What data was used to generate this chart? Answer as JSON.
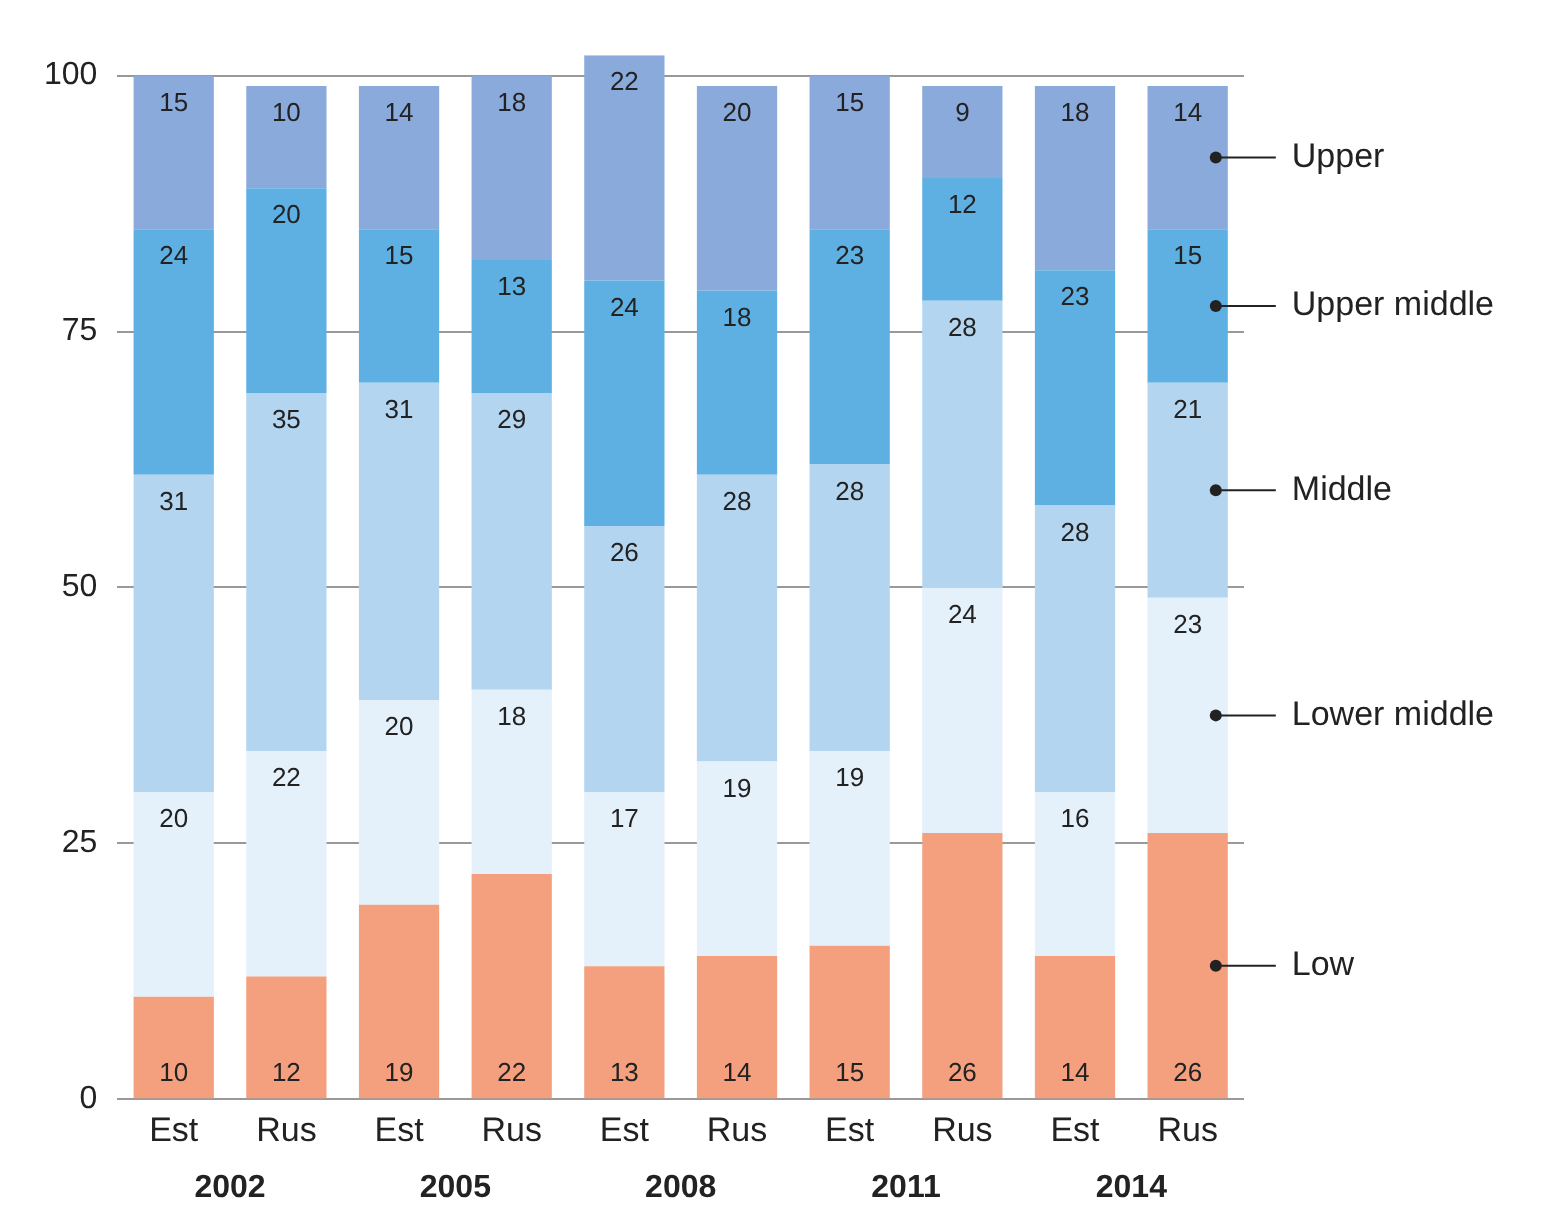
{
  "chart_data": {
    "type": "bar",
    "stacked": true,
    "categories": [
      "Est",
      "Rus",
      "Est",
      "Rus",
      "Est",
      "Rus",
      "Est",
      "Rus",
      "Est",
      "Rus"
    ],
    "series": [
      {
        "name": "Low",
        "color": "#f4a07e",
        "values": [
          10,
          12,
          19,
          22,
          13,
          14,
          15,
          26,
          14,
          26
        ]
      },
      {
        "name": "Lower middle",
        "color": "#e4f0fa",
        "values": [
          20,
          22,
          20,
          18,
          17,
          19,
          19,
          24,
          16,
          23
        ]
      },
      {
        "name": "Middle",
        "color": "#b3d5f0",
        "values": [
          31,
          35,
          31,
          29,
          26,
          28,
          28,
          28,
          28,
          21
        ]
      },
      {
        "name": "Upper middle",
        "color": "#5eb0e3",
        "values": [
          24,
          20,
          15,
          13,
          24,
          18,
          23,
          12,
          23,
          15
        ]
      },
      {
        "name": "Upper",
        "color": "#8aaadb",
        "values": [
          15,
          10,
          14,
          18,
          22,
          20,
          15,
          9,
          18,
          14
        ]
      }
    ],
    "annotations": [
      "2002",
      "2005",
      "2008",
      "2011",
      "2014"
    ],
    "ylim": [
      0,
      102
    ],
    "yticks": [
      0,
      25,
      50,
      75,
      100
    ],
    "grid": "y",
    "legend": "right",
    "data_labels": true
  }
}
